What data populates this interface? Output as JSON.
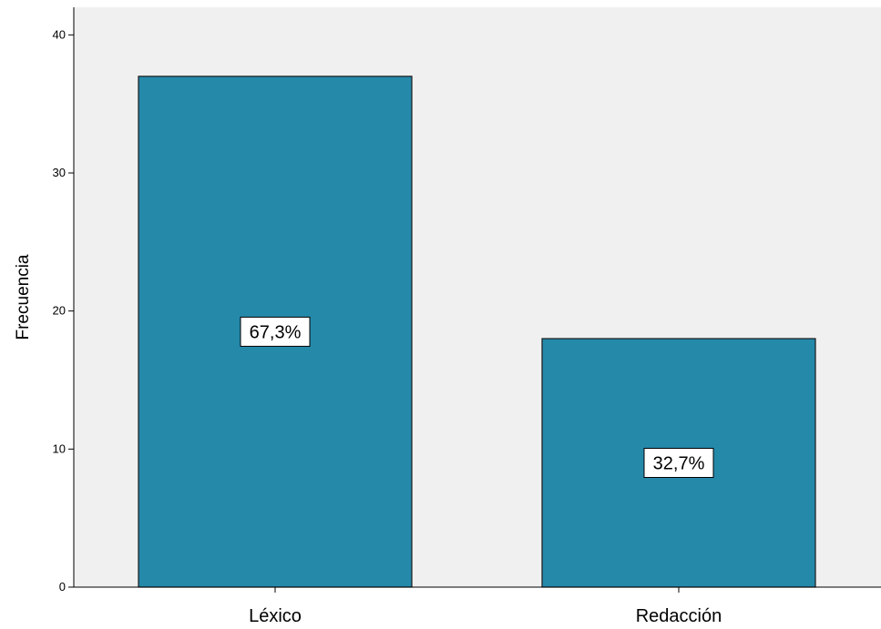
{
  "chart_data": {
    "type": "bar",
    "categories": [
      "Léxico",
      "Redacción"
    ],
    "values": [
      37,
      18
    ],
    "data_labels": [
      "67,3%",
      "32,7%"
    ],
    "title": "",
    "xlabel": "",
    "ylabel": "Frecuencia",
    "ylim": [
      0,
      42
    ],
    "yticks": [
      0,
      10,
      20,
      30,
      40
    ],
    "grid": false,
    "legend": "none",
    "colors": {
      "bar_fill": "#2589AA",
      "bar_stroke": "#1A1A1A",
      "plot_background": "#F0F0F0",
      "label_box_fill": "#FFFFFF"
    }
  }
}
